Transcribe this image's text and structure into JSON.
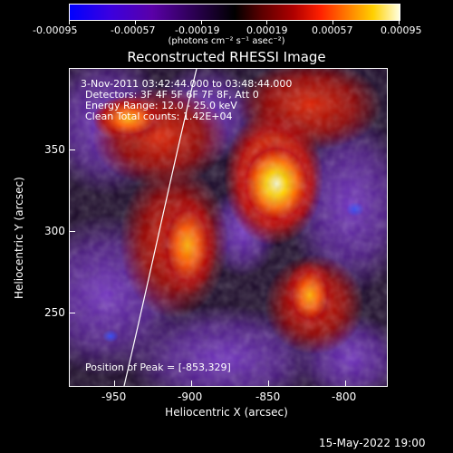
{
  "colorbar": {
    "ticks": [
      "-0.00095",
      "-0.00057",
      "-0.00019",
      "0.00019",
      "0.00057",
      "0.00095"
    ],
    "units": "(photons cm⁻² s⁻¹ asec⁻²)"
  },
  "plot": {
    "title": "Reconstructed RHESSI Image",
    "info": [
      "3-Nov-2011 03:42:44.000 to 03:48:44.000",
      "Detectors: 3F 4F 5F 6F 7F 8F, Att 0",
      "Energy Range: 12.0 - 25.0 keV",
      "Clean      Total counts: 1.42E+04"
    ],
    "peak_text": "Position of Peak = [-853,329]",
    "xlabel": "Heliocentric X (arcsec)",
    "ylabel": "Heliocentric Y (arcsec)",
    "xticks": [
      "-950",
      "-900",
      "-850",
      "-800"
    ],
    "yticks": [
      "350",
      "300",
      "250"
    ]
  },
  "footer": {
    "date": "15-May-2022 19:00"
  }
}
